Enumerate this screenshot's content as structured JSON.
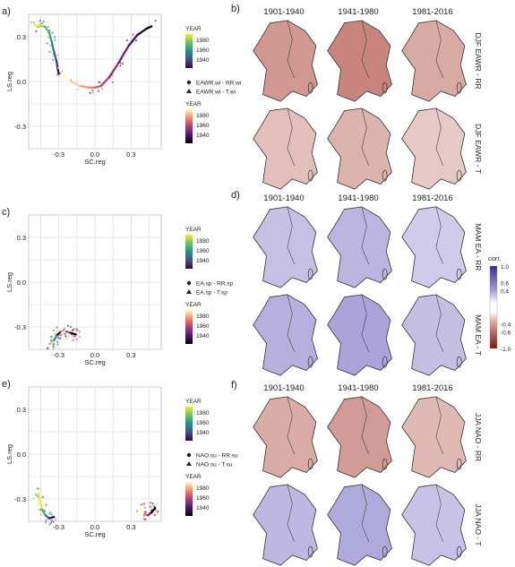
{
  "chart_data": [
    {
      "panel": "a)",
      "type": "scatter",
      "xlabel": "SC.reg",
      "ylabel": "LS.reg",
      "xticks": [
        "-0.3",
        "0.0",
        "0.3"
      ],
      "yticks": [
        "0.3",
        "0.0",
        "-0.3"
      ],
      "xlim": [
        -0.55,
        0.55
      ],
      "ylim": [
        -0.45,
        0.45
      ],
      "legend_year_1": {
        "title": "YEAR",
        "ticks": [
          "1980",
          "1960",
          "1940"
        ]
      },
      "legend_shapes": [
        "EAWR.wi - RR.wi",
        "EAWR.wi - T.wi"
      ],
      "legend_year_2": {
        "title": "YEAR",
        "ticks": [
          "1980",
          "1960",
          "1940"
        ]
      },
      "series": [
        {
          "name": "EAWR.wi - RR.wi",
          "x": [
            -0.5,
            -0.45,
            -0.42,
            -0.38,
            -0.36,
            -0.34,
            -0.32,
            -0.31,
            -0.3
          ],
          "y": [
            0.38,
            0.37,
            0.37,
            0.33,
            0.27,
            0.2,
            0.14,
            0.09,
            0.05
          ]
        },
        {
          "name": "EAWR.wi - T.wi",
          "x": [
            -0.28,
            -0.2,
            -0.12,
            -0.05,
            0.0,
            0.05,
            0.12,
            0.2,
            0.28,
            0.35,
            0.42,
            0.47
          ],
          "y": [
            0.06,
            0.0,
            -0.03,
            -0.04,
            -0.04,
            -0.03,
            0.03,
            0.13,
            0.24,
            0.31,
            0.35,
            0.37
          ]
        }
      ]
    },
    {
      "panel": "c)",
      "type": "scatter",
      "xlabel": "SC.reg",
      "ylabel": "LS.reg",
      "xticks": [
        "-0.3",
        "0.0",
        "0.3"
      ],
      "yticks": [
        "0.3",
        "0.0",
        "-0.3"
      ],
      "xlim": [
        -0.55,
        0.55
      ],
      "ylim": [
        -0.45,
        0.45
      ],
      "legend_year_1": {
        "title": "YEAR",
        "ticks": [
          "1980",
          "1960",
          "1940"
        ]
      },
      "legend_shapes": [
        "EA.sp - RR.sp",
        "EA.sp - T.sp"
      ],
      "legend_year_2": {
        "title": "YEAR",
        "ticks": [
          "1980",
          "1960",
          "1940"
        ]
      },
      "series": [
        {
          "name": "EA.sp - RR.sp",
          "x": [
            -0.36,
            -0.34,
            -0.31,
            -0.28
          ],
          "y": [
            -0.41,
            -0.39,
            -0.35,
            -0.33
          ]
        },
        {
          "name": "EA.sp - T.sp",
          "x": [
            -0.27,
            -0.24,
            -0.2,
            -0.16
          ],
          "y": [
            -0.34,
            -0.33,
            -0.34,
            -0.35
          ]
        }
      ]
    },
    {
      "panel": "e)",
      "type": "scatter",
      "xlabel": "SC.reg",
      "ylabel": "LS.reg",
      "xticks": [
        "-0.3",
        "0.0",
        "0.3"
      ],
      "yticks": [
        "0.3",
        "0.0",
        "-0.3"
      ],
      "xlim": [
        -0.55,
        0.55
      ],
      "ylim": [
        -0.45,
        0.45
      ],
      "legend_year_1": {
        "title": "YEAR",
        "ticks": [
          "1980",
          "1960",
          "1940"
        ]
      },
      "legend_shapes": [
        "NAO.su - RR.su",
        "NAO.su - T.su"
      ],
      "legend_year_2": {
        "title": "YEAR",
        "ticks": [
          "1980",
          "1960",
          "1940"
        ]
      },
      "series": [
        {
          "name": "NAO.su - RR.su",
          "x": [
            -0.47,
            -0.44,
            -0.41,
            -0.38,
            -0.34
          ],
          "y": [
            -0.26,
            -0.37,
            -0.41,
            -0.43,
            -0.42
          ]
        },
        {
          "name": "NAO.su - T.su",
          "x": [
            0.38,
            0.41,
            0.44,
            0.47,
            0.5
          ],
          "y": [
            -0.37,
            -0.4,
            -0.41,
            -0.39,
            -0.36
          ]
        }
      ]
    }
  ],
  "maps": {
    "panels": [
      {
        "letter": "b)",
        "rows": [
          "DJF EAWR - RR",
          "DJF EAWR - T"
        ]
      },
      {
        "letter": "d)",
        "rows": [
          "MAM EA - RR",
          "MAM EA - T"
        ]
      },
      {
        "letter": "f)",
        "rows": [
          "JJA NAO - RR",
          "JJA NAO - T"
        ]
      }
    ],
    "periods": [
      "1901-1940",
      "1941-1980",
      "1981-2016"
    ],
    "colorbar": {
      "title": "corr.",
      "ticks": [
        "1.0",
        "0.6",
        "0.4",
        "-0.4",
        "-0.6",
        "-1.0"
      ]
    }
  },
  "colors": {
    "positive": "#8f84cc",
    "negative": "#b9675c",
    "grid": "#d6d6d6"
  }
}
